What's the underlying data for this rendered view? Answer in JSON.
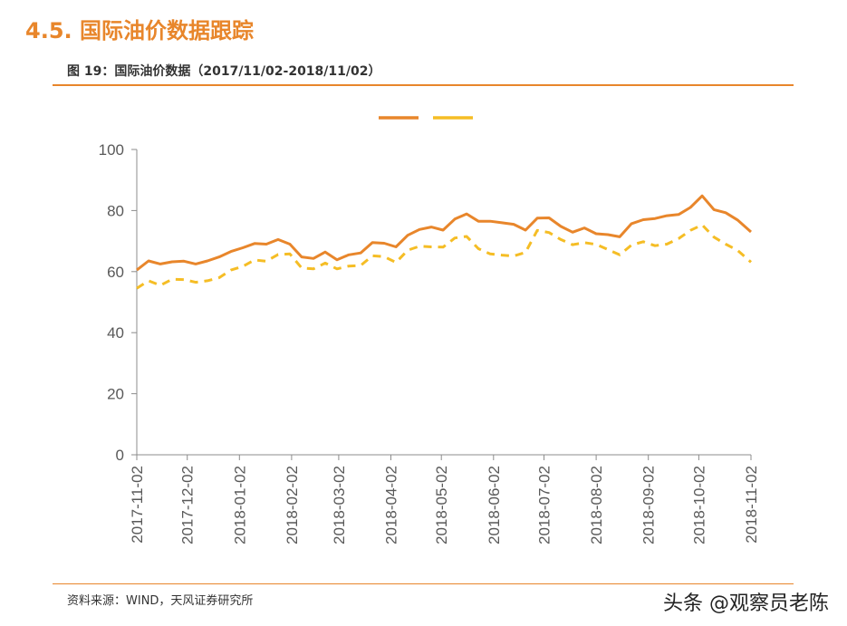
{
  "header": {
    "section_title": "4.5. 国际油价数据跟踪",
    "figure_caption": "图 19：国际油价数据（2017/11/02-2018/11/02）"
  },
  "footer": {
    "source": "资料来源：WIND，天风证券研究所",
    "watermark": "头条 @观察员老陈"
  },
  "colors": {
    "accent": "#E8862B",
    "series_solid": "#E8862B",
    "series_dashed": "#F5BD25",
    "axis": "#8C8C8C",
    "tick_label": "#595959"
  },
  "chart_data": {
    "type": "line",
    "title": "",
    "xlabel": "",
    "ylabel": "",
    "ylim": [
      0,
      100
    ],
    "y_ticks": [
      0,
      20,
      40,
      60,
      80,
      100
    ],
    "x_ticks": [
      "2017-11-02",
      "2017-12-02",
      "2018-01-02",
      "2018-02-02",
      "2018-03-02",
      "2018-04-02",
      "2018-05-02",
      "2018-06-02",
      "2018-07-02",
      "2018-08-02",
      "2018-09-02",
      "2018-10-02",
      "2018-11-02"
    ],
    "grid": false,
    "legend": {
      "position": "top-center",
      "labels_visible": false
    },
    "series": [
      {
        "style": "solid",
        "x": [
          "2017-11-02",
          "2017-11-09",
          "2017-11-16",
          "2017-11-23",
          "2017-11-30",
          "2017-12-07",
          "2017-12-14",
          "2017-12-21",
          "2017-12-28",
          "2018-01-04",
          "2018-01-11",
          "2018-01-18",
          "2018-01-25",
          "2018-02-01",
          "2018-02-08",
          "2018-02-15",
          "2018-02-22",
          "2018-03-01",
          "2018-03-08",
          "2018-03-15",
          "2018-03-22",
          "2018-03-29",
          "2018-04-05",
          "2018-04-12",
          "2018-04-19",
          "2018-04-26",
          "2018-05-03",
          "2018-05-10",
          "2018-05-17",
          "2018-05-24",
          "2018-05-31",
          "2018-06-07",
          "2018-06-14",
          "2018-06-21",
          "2018-06-28",
          "2018-07-05",
          "2018-07-12",
          "2018-07-19",
          "2018-07-26",
          "2018-08-02",
          "2018-08-09",
          "2018-08-16",
          "2018-08-23",
          "2018-08-30",
          "2018-09-06",
          "2018-09-13",
          "2018-09-20",
          "2018-09-27",
          "2018-10-04",
          "2018-10-11",
          "2018-10-18",
          "2018-10-25",
          "2018-11-02"
        ],
        "values": [
          60.5,
          63.5,
          62.5,
          63.2,
          63.4,
          62.5,
          63.5,
          64.8,
          66.6,
          67.8,
          69.2,
          69.0,
          70.5,
          69.0,
          64.8,
          64.3,
          66.4,
          63.9,
          65.5,
          66.1,
          69.5,
          69.3,
          68.1,
          71.9,
          73.8,
          74.6,
          73.6,
          77.2,
          78.9,
          76.5,
          76.5,
          76.0,
          75.5,
          73.6,
          77.5,
          77.6,
          74.8,
          72.9,
          74.3,
          72.4,
          72.1,
          71.4,
          75.7,
          77.0,
          77.4,
          78.3,
          78.7,
          81.0,
          84.8,
          80.3,
          79.3,
          76.9,
          73.0
        ]
      },
      {
        "style": "dashed",
        "x": [
          "2017-11-02",
          "2017-11-09",
          "2017-11-16",
          "2017-11-23",
          "2017-11-30",
          "2017-12-07",
          "2017-12-14",
          "2017-12-21",
          "2017-12-28",
          "2018-01-04",
          "2018-01-11",
          "2018-01-18",
          "2018-01-25",
          "2018-02-01",
          "2018-02-08",
          "2018-02-15",
          "2018-02-22",
          "2018-03-01",
          "2018-03-08",
          "2018-03-15",
          "2018-03-22",
          "2018-03-29",
          "2018-04-05",
          "2018-04-12",
          "2018-04-19",
          "2018-04-26",
          "2018-05-03",
          "2018-05-10",
          "2018-05-17",
          "2018-05-24",
          "2018-05-31",
          "2018-06-07",
          "2018-06-14",
          "2018-06-21",
          "2018-06-28",
          "2018-07-05",
          "2018-07-12",
          "2018-07-19",
          "2018-07-26",
          "2018-08-02",
          "2018-08-09",
          "2018-08-16",
          "2018-08-23",
          "2018-08-30",
          "2018-09-06",
          "2018-09-13",
          "2018-09-20",
          "2018-09-27",
          "2018-10-04",
          "2018-10-11",
          "2018-10-18",
          "2018-10-25",
          "2018-11-02"
        ],
        "values": [
          54.5,
          57.0,
          55.5,
          57.5,
          57.4,
          56.5,
          57.0,
          58.0,
          60.5,
          61.7,
          63.8,
          63.4,
          65.6,
          65.8,
          61.2,
          60.9,
          62.8,
          60.9,
          61.8,
          62.0,
          65.2,
          64.9,
          63.0,
          67.0,
          68.3,
          68.1,
          68.0,
          71.0,
          71.5,
          67.5,
          65.8,
          65.4,
          65.1,
          66.3,
          73.5,
          72.8,
          70.5,
          68.8,
          69.5,
          68.9,
          67.2,
          65.5,
          68.7,
          69.8,
          68.5,
          69.0,
          70.8,
          73.5,
          75.3,
          71.3,
          69.0,
          67.0,
          63.1
        ]
      }
    ]
  }
}
